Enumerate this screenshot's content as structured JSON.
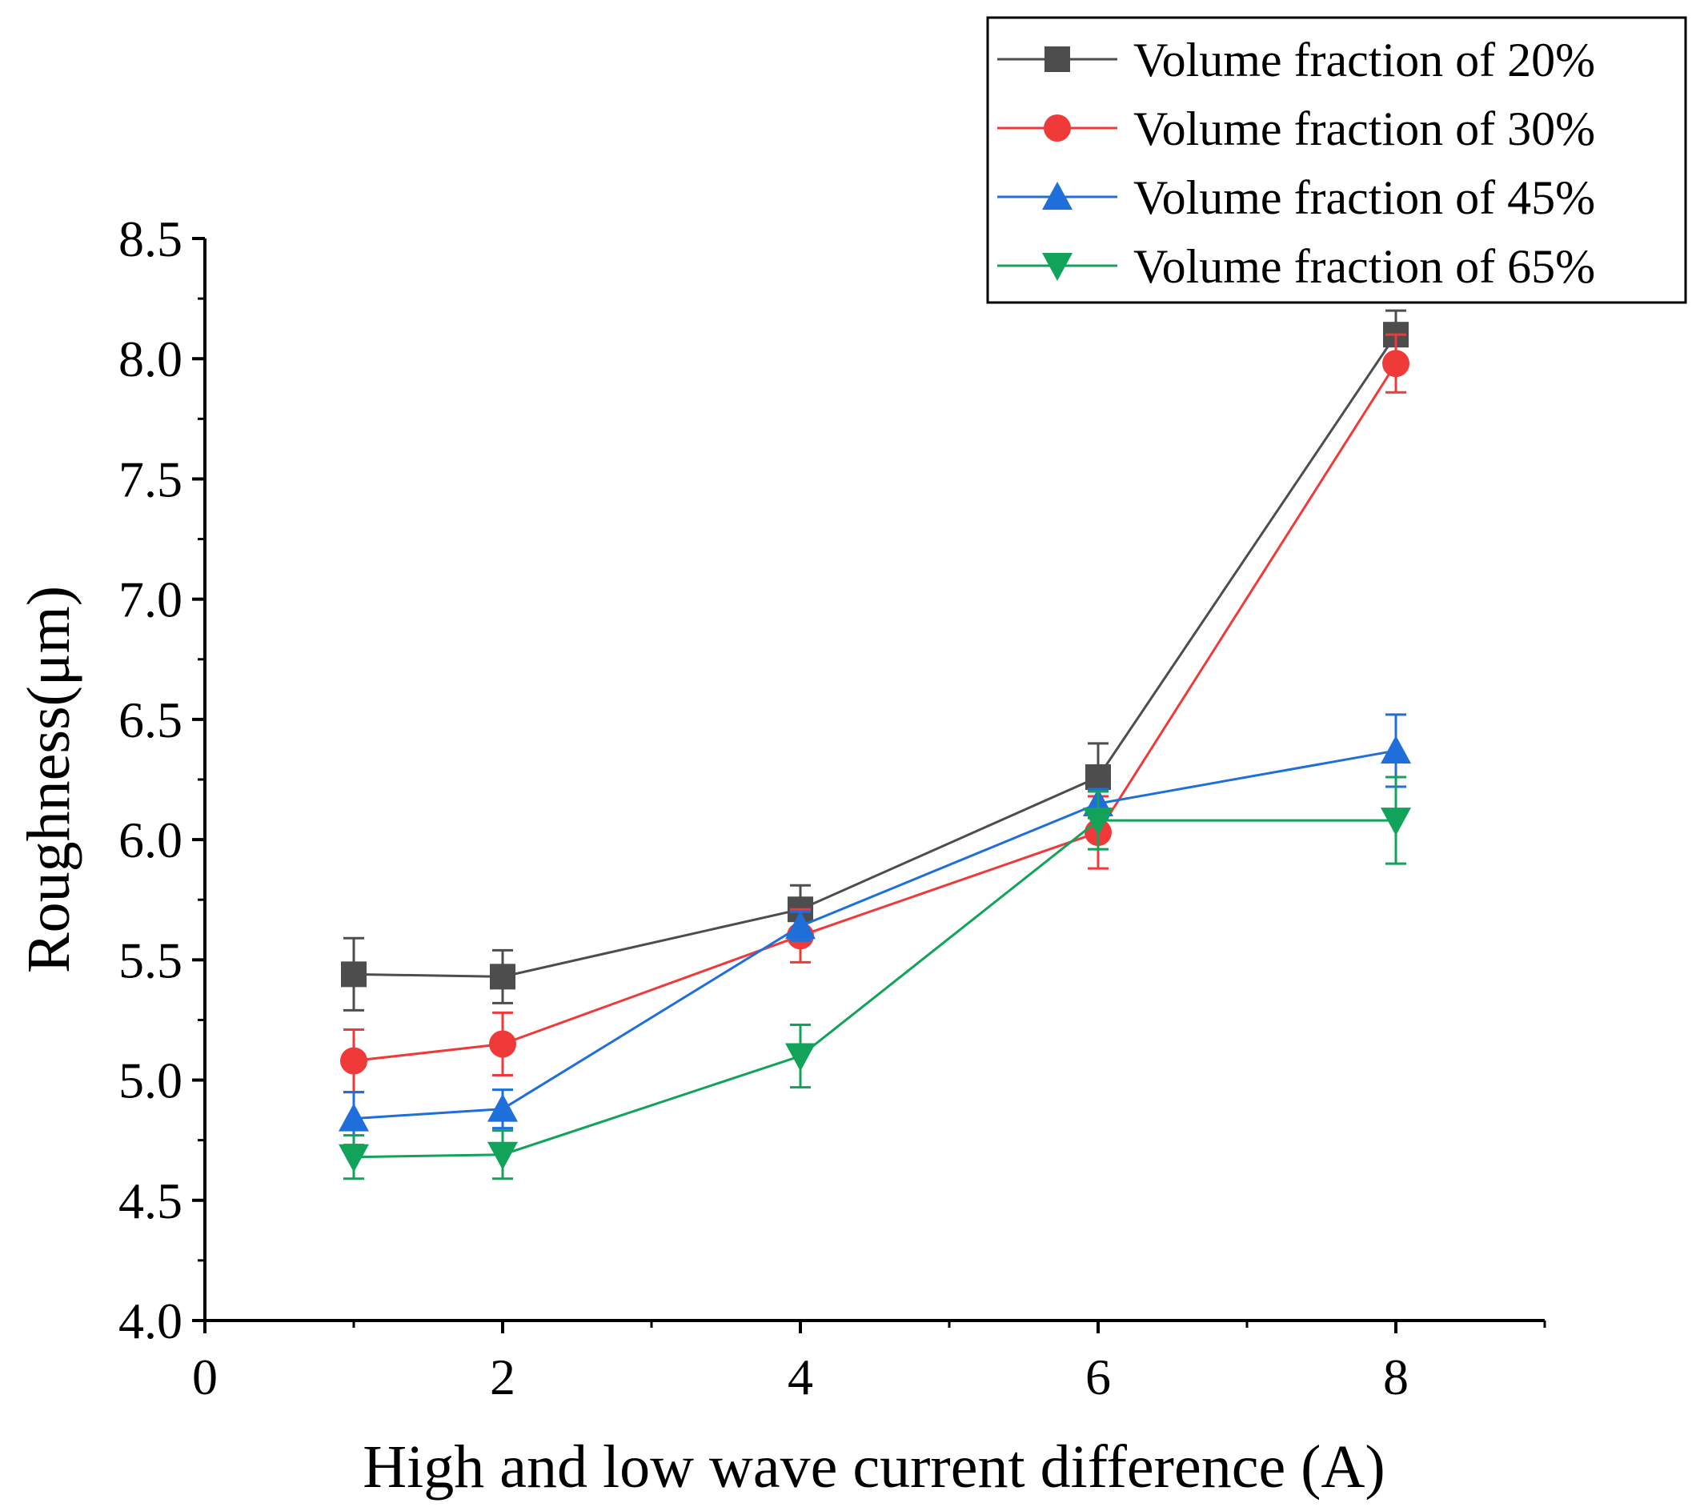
{
  "chart_data": {
    "type": "line",
    "title": "",
    "xlabel": "High and low wave current difference (A)",
    "ylabel": "Roughness(μm)",
    "xlim": [
      0,
      9
    ],
    "ylim": [
      4.0,
      8.5
    ],
    "xticks": [
      0,
      2,
      4,
      6,
      8
    ],
    "xtick_labels": [
      "0",
      "2",
      "4",
      "6",
      "8"
    ],
    "yticks": [
      4.0,
      4.5,
      5.0,
      5.5,
      6.0,
      6.5,
      7.0,
      7.5,
      8.0,
      8.5
    ],
    "ytick_labels": [
      "4.0",
      "4.5",
      "5.0",
      "5.5",
      "6.0",
      "6.5",
      "7.0",
      "7.5",
      "8.0",
      "8.5"
    ],
    "grid": false,
    "legend_position": "top-right",
    "x": [
      1,
      2,
      4,
      6,
      8
    ],
    "series": [
      {
        "name": "Volume fraction of 20%",
        "marker": "square",
        "color": "#4d4d4d",
        "values": [
          5.44,
          5.43,
          5.71,
          6.26,
          8.1
        ],
        "errors": [
          0.15,
          0.11,
          0.1,
          0.14,
          0.1
        ]
      },
      {
        "name": "Volume fraction of 30%",
        "marker": "circle",
        "color": "#f03a3a",
        "values": [
          5.08,
          5.15,
          5.6,
          6.03,
          7.98
        ],
        "errors": [
          0.13,
          0.13,
          0.11,
          0.15,
          0.12
        ]
      },
      {
        "name": "Volume fraction of 45%",
        "marker": "triangle-up",
        "color": "#1f6fdb",
        "values": [
          4.84,
          4.88,
          5.64,
          6.15,
          6.37
        ],
        "errors": [
          0.11,
          0.08,
          0.06,
          0.06,
          0.15
        ]
      },
      {
        "name": "Volume fraction of 65%",
        "marker": "triangle-down",
        "color": "#12a35a",
        "values": [
          4.68,
          4.69,
          5.1,
          6.08,
          6.08
        ],
        "errors": [
          0.09,
          0.1,
          0.13,
          0.12,
          0.18
        ]
      }
    ]
  }
}
